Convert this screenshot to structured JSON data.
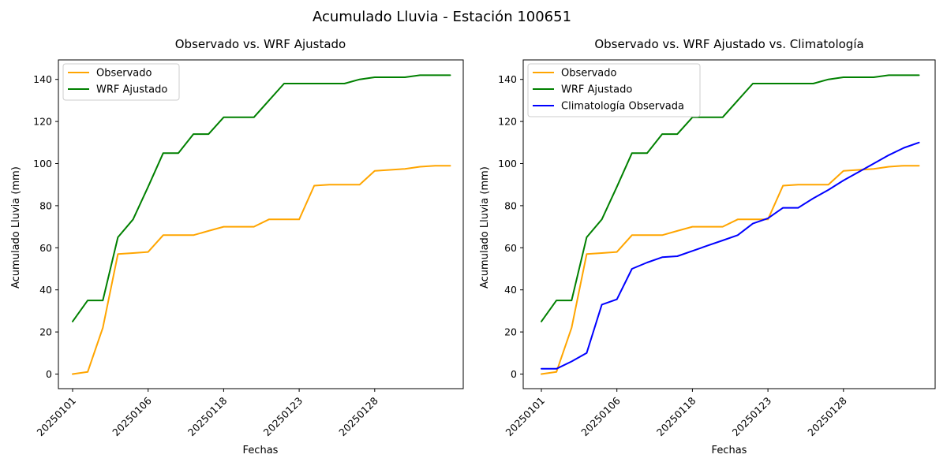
{
  "figure": {
    "title": "Acumulado Lluvia - Estación 100651",
    "background": "#ffffff"
  },
  "colors": {
    "observado": "#FFA500",
    "wrf_ajustado": "#008000",
    "climatologia": "#0000FF",
    "axis": "#000000",
    "legend_border": "#cccccc"
  },
  "chart_data": [
    {
      "type": "line",
      "title": "Observado vs. WRF Ajustado",
      "xlabel": "Fechas",
      "ylabel": "Acumulado Lluvia (mm)",
      "x_index": [
        0,
        1,
        2,
        3,
        4,
        5,
        6,
        7,
        8,
        9,
        10,
        11,
        12,
        13,
        14,
        15,
        16,
        17,
        18,
        19,
        20,
        21,
        22,
        23,
        24,
        25
      ],
      "xtick_positions": [
        0,
        5,
        10,
        15,
        20
      ],
      "xtick_labels": [
        "20250101",
        "20250106",
        "20250118",
        "20250123",
        "20250128"
      ],
      "yticks": [
        0,
        20,
        40,
        60,
        80,
        100,
        120,
        140
      ],
      "ylim": [
        -6,
        148
      ],
      "xlim": [
        -1,
        26
      ],
      "grid": false,
      "legend_position": "upper left",
      "series": [
        {
          "name": "Observado",
          "color": "#FFA500",
          "values": [
            0,
            1,
            22,
            57,
            57.5,
            58,
            66,
            66,
            66,
            68,
            70,
            70,
            70,
            73.5,
            73.5,
            73.5,
            89.5,
            90,
            90,
            90,
            96.5,
            97,
            97.5,
            98.5,
            99,
            99
          ]
        },
        {
          "name": "WRF Ajustado",
          "color": "#008000",
          "values": [
            25,
            35,
            35,
            65,
            73.5,
            89,
            105,
            105,
            114,
            114,
            122,
            122,
            122,
            130,
            138,
            138,
            138,
            138,
            138,
            140,
            141,
            141,
            141,
            142,
            142,
            142
          ]
        }
      ]
    },
    {
      "type": "line",
      "title": "Observado vs. WRF Ajustado vs. Climatología",
      "xlabel": "Fechas",
      "ylabel": "Acumulado Lluvia (mm)",
      "x_index": [
        0,
        1,
        2,
        3,
        4,
        5,
        6,
        7,
        8,
        9,
        10,
        11,
        12,
        13,
        14,
        15,
        16,
        17,
        18,
        19,
        20,
        21,
        22,
        23,
        24,
        25
      ],
      "xtick_positions": [
        0,
        5,
        10,
        15,
        20
      ],
      "xtick_labels": [
        "20250101",
        "20250106",
        "20250118",
        "20250123",
        "20250128"
      ],
      "yticks": [
        0,
        20,
        40,
        60,
        80,
        100,
        120,
        140
      ],
      "ylim": [
        -6,
        148
      ],
      "xlim": [
        -1,
        26
      ],
      "grid": false,
      "legend_position": "upper left",
      "series": [
        {
          "name": "Observado",
          "color": "#FFA500",
          "values": [
            0,
            1,
            22,
            57,
            57.5,
            58,
            66,
            66,
            66,
            68,
            70,
            70,
            70,
            73.5,
            73.5,
            73.5,
            89.5,
            90,
            90,
            90,
            96.5,
            97,
            97.5,
            98.5,
            99,
            99
          ]
        },
        {
          "name": "WRF Ajustado",
          "color": "#008000",
          "values": [
            25,
            35,
            35,
            65,
            73.5,
            89,
            105,
            105,
            114,
            114,
            122,
            122,
            122,
            130,
            138,
            138,
            138,
            138,
            138,
            140,
            141,
            141,
            141,
            142,
            142,
            142
          ]
        },
        {
          "name": "Climatología Observada",
          "color": "#0000FF",
          "values": [
            2.5,
            2.5,
            6,
            10,
            33,
            35.5,
            50,
            53,
            55.5,
            56,
            58.5,
            61,
            63.5,
            66,
            71.5,
            74,
            79,
            79,
            83.5,
            87.5,
            92,
            96,
            100,
            104,
            107.5,
            110
          ]
        }
      ]
    }
  ]
}
